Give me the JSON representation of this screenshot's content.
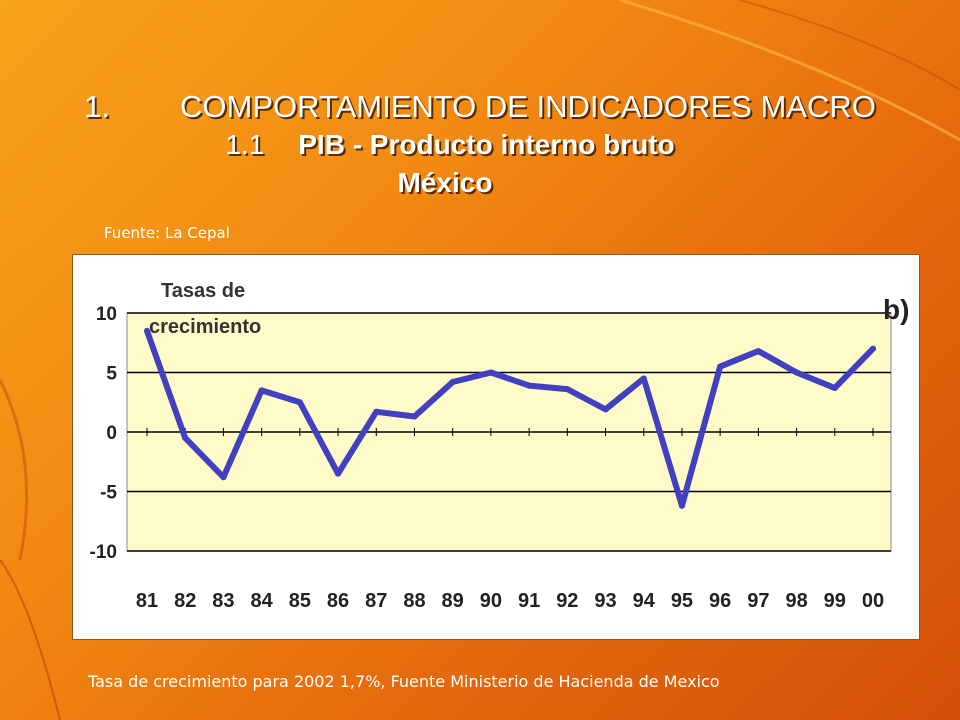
{
  "slide": {
    "title_l1_num": "1.",
    "title_l1_text": "COMPORTAMIENTO DE INDICADORES MACRO",
    "title_l2_num": "1.1",
    "title_l2_text": "PIB - Producto interno bruto",
    "title_l3": "México",
    "source": "Fuente: La Cepal",
    "footnote": "Tasa de crecimiento para 2002 1,7%, Fuente Ministerio de Hacienda de Mexico"
  },
  "colors": {
    "plot_background": "#fffbc8",
    "line": "#4040c0",
    "gridline": "#000000"
  },
  "chart_data": {
    "type": "line",
    "title": "Tasas de crecimiento",
    "panel_label": "b)",
    "categories": [
      "81",
      "82",
      "83",
      "84",
      "85",
      "86",
      "87",
      "88",
      "89",
      "90",
      "91",
      "92",
      "93",
      "94",
      "95",
      "96",
      "97",
      "98",
      "99",
      "00"
    ],
    "values": [
      8.5,
      -0.5,
      -3.8,
      3.5,
      2.5,
      -3.5,
      1.7,
      1.3,
      4.2,
      5.0,
      3.9,
      3.6,
      1.9,
      4.5,
      -6.2,
      5.5,
      6.8,
      5.0,
      3.7,
      7.0
    ],
    "yticks": [
      10,
      5,
      0,
      -5,
      -10
    ],
    "ylim": [
      -10,
      10
    ],
    "grid": true
  }
}
